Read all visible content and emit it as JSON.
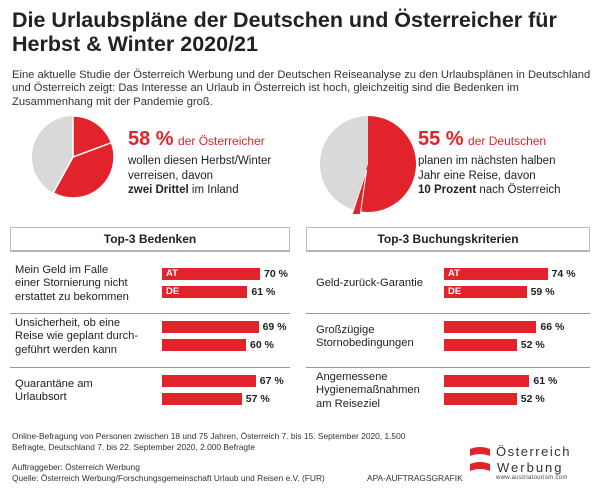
{
  "title": "Die Urlaubspläne der Deutschen und Österreicher für Herbst & Winter 2020/21",
  "intro": "Eine aktuelle Studie der Österreich Werbung und der Deutschen Reiseanalyse zu den Urlaubsplänen in Deutschland und Österreich zeigt: Das Interesse an Urlaub in Österreich ist hoch, gleichzeitig sind die Bedenken im Zusammenhang mit der Pandemie groß.",
  "colors": {
    "accent": "#e3232b",
    "pie_rest": "#d9d9d9",
    "text": "#222222"
  },
  "pies": [
    {
      "pct": "58 %",
      "pct_label": "der Österreicher",
      "line1": "wollen diesen Herbst/Winter",
      "line2": "verreisen, davon",
      "bold": "zwei Drittel",
      "tail": "im Inland",
      "share": 0.58,
      "sub_share": 0.667
    },
    {
      "pct": "55 %",
      "pct_label": "der Deutschen",
      "line1": "planen im nächsten halben",
      "line2": "Jahr eine Reise, davon",
      "bold": "10 Prozent",
      "tail": "nach Österreich",
      "share": 0.55,
      "sub_share": 0.1
    }
  ],
  "panels": {
    "left_title": "Top-3 Bedenken",
    "right_title": "Top-3 Buchungskriterien"
  },
  "chart_data": [
    {
      "type": "bar",
      "title": "Top-3 Bedenken",
      "categories": [
        "Mein Geld im Falle einer Stornierung nicht erstattet zu bekommen",
        "Unsicherheit, ob eine Reise wie geplant durchgeführt werden kann",
        "Quarantäne am Urlaubsort"
      ],
      "series": [
        {
          "name": "AT",
          "values": [
            70,
            69,
            67
          ],
          "labels": [
            "70 %",
            "69 %",
            "67 %"
          ]
        },
        {
          "name": "DE",
          "values": [
            61,
            60,
            57
          ],
          "labels": [
            "61 %",
            "60 %",
            "57 %"
          ]
        }
      ]
    },
    {
      "type": "bar",
      "title": "Top-3 Buchungskriterien",
      "categories": [
        "Geld-zurück-Garantie",
        "Großzügige Stornobedingungen",
        "Angemessene Hygienemaßnahmen am Reiseziel"
      ],
      "series": [
        {
          "name": "AT",
          "values": [
            74,
            66,
            61
          ],
          "labels": [
            "74 %",
            "66 %",
            "61 %"
          ]
        },
        {
          "name": "DE",
          "values": [
            59,
            52,
            52
          ],
          "labels": [
            "59 %",
            "52 %",
            "52 %"
          ]
        }
      ]
    }
  ],
  "left_rows": [
    [
      "Mein Geld im Falle",
      "einer Stornierung nicht",
      "erstattet zu bekommen"
    ],
    [
      "Unsicherheit, ob eine",
      "Reise wie geplant durch-",
      "geführt werden kann"
    ],
    [
      "Quarantäne am",
      "Urlaubsort"
    ]
  ],
  "right_rows": [
    [
      "Geld-zurück-Garantie"
    ],
    [
      "Großzügige",
      "Stornobedingungen"
    ],
    [
      "Angemessene",
      "Hygienemaßnahmen",
      "am Reiseziel"
    ]
  ],
  "footnote": "Online-Befragung von Personen zwischen 18 und 75 Jahren, Österreich 7. bis 15. September 2020, 1.500 Befragte, Deutschland 7. bis 22. September 2020, 2.000 Befragte",
  "client": "Auftraggeber: Österreich Werbung",
  "source": "Quelle: Österreich Werbung/Forschungsgemeinschaft Urlaub und Reisen e.V. (FUR)",
  "credit": "APA-AUFTRAGSGRAFIK",
  "logo": {
    "name": "Österreich",
    "sub": "Werbung",
    "url": "www.austriatourism.com"
  }
}
